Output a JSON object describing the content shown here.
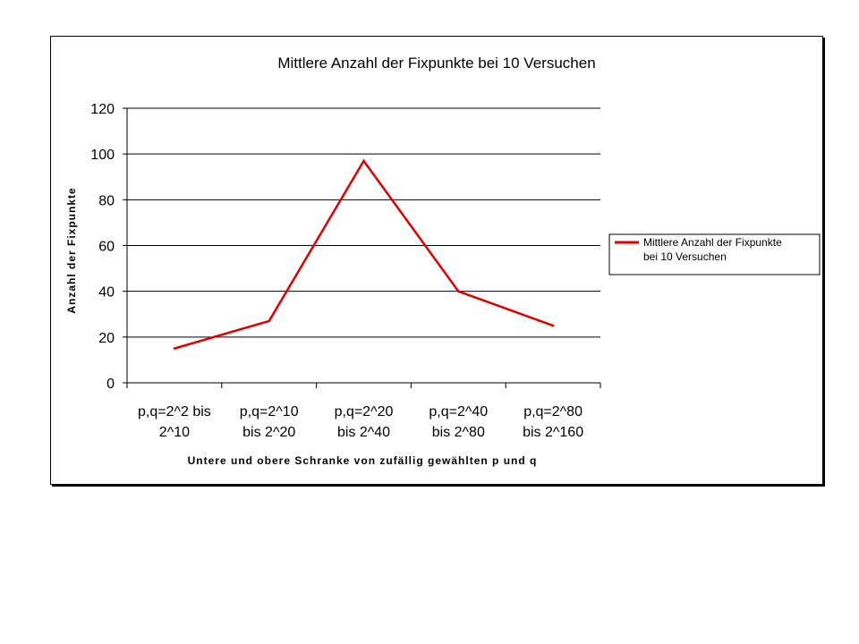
{
  "chart_data": {
    "type": "line",
    "title": "Mittlere Anzahl der Fixpunkte bei 10 Versuchen",
    "xlabel": "Untere und obere Schranke von zufällig gewählten p und q",
    "ylabel": "Anzahl der Fixpunkte",
    "categories": [
      [
        "p,q=2^2 bis",
        "2^10"
      ],
      [
        "p,q=2^10",
        "bis 2^20"
      ],
      [
        "p,q=2^20",
        "bis 2^40"
      ],
      [
        "p,q=2^40",
        "bis 2^80"
      ],
      [
        "p,q=2^80",
        "bis 2^160"
      ]
    ],
    "series": [
      {
        "name": [
          "Mittlere Anzahl der Fixpunkte",
          "bei 10 Versuchen"
        ],
        "values": [
          15,
          27,
          97,
          40,
          25
        ],
        "color": "#e00000"
      }
    ],
    "ylim": [
      0,
      120
    ],
    "yticks": [
      0,
      20,
      40,
      60,
      80,
      100,
      120
    ],
    "grid": true,
    "legend": "right"
  }
}
